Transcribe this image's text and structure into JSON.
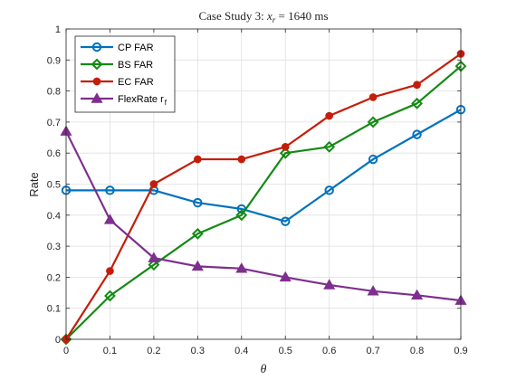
{
  "chart_data": {
    "type": "line",
    "title_prefix": "Case Study 3: ",
    "title_var": "x",
    "title_sub": "r",
    "title_suffix": " = 1640 ms",
    "xlabel": "θ",
    "ylabel": "Rate",
    "xlim": [
      0,
      0.9
    ],
    "ylim": [
      0,
      1
    ],
    "xticks": [
      "0",
      "0.1",
      "0.2",
      "0.3",
      "0.4",
      "0.5",
      "0.6",
      "0.7",
      "0.8",
      "0.9"
    ],
    "yticks": [
      "0",
      "0.1",
      "0.2",
      "0.3",
      "0.4",
      "0.5",
      "0.6",
      "0.7",
      "0.8",
      "0.9",
      "1"
    ],
    "grid": true,
    "legend_position": "top-left",
    "x": [
      0,
      0.1,
      0.2,
      0.3,
      0.4,
      0.5,
      0.6,
      0.7,
      0.8,
      0.9
    ],
    "series": [
      {
        "name": "CP FAR",
        "marker": "circle-open",
        "color": "#0072BD",
        "values": [
          0.48,
          0.48,
          0.48,
          0.44,
          0.42,
          0.38,
          0.48,
          0.58,
          0.66,
          0.74
        ]
      },
      {
        "name": "BS FAR",
        "marker": "diamond-open",
        "color": "#138A13",
        "values": [
          0.0,
          0.14,
          0.24,
          0.34,
          0.4,
          0.6,
          0.62,
          0.7,
          0.76,
          0.88
        ]
      },
      {
        "name": "EC FAR",
        "marker": "circle-filled",
        "color": "#C41E0A",
        "values": [
          0.0,
          0.22,
          0.5,
          0.58,
          0.58,
          0.62,
          0.72,
          0.78,
          0.82,
          0.92
        ]
      },
      {
        "name": "FlexRate r",
        "name_sub": "f",
        "marker": "triangle-filled",
        "color": "#7E2F8E",
        "values": [
          0.67,
          0.385,
          0.262,
          0.235,
          0.228,
          0.2,
          0.175,
          0.155,
          0.142,
          0.125
        ]
      }
    ]
  }
}
